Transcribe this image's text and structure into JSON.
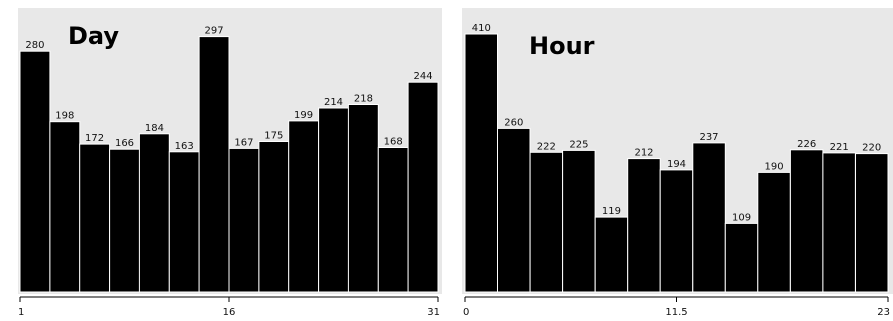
{
  "chart_data": [
    {
      "type": "bar",
      "title": "Day",
      "xlabel": "",
      "ylabel": "",
      "values": [
        280,
        198,
        172,
        166,
        184,
        163,
        297,
        167,
        175,
        199,
        214,
        218,
        168,
        244
      ],
      "xticks": [
        "1",
        "16",
        "31"
      ],
      "ylim": [
        0,
        300
      ],
      "grid": false,
      "colors": {
        "bar": "#000000",
        "background": "#e8e8e8"
      }
    },
    {
      "type": "bar",
      "title": "Hour",
      "xlabel": "",
      "ylabel": "",
      "values": [
        410,
        260,
        222,
        225,
        119,
        212,
        194,
        237,
        109,
        190,
        226,
        221,
        220
      ],
      "xticks": [
        "0",
        "11.5",
        "23"
      ],
      "ylim": [
        0,
        410
      ],
      "grid": false,
      "colors": {
        "bar": "#000000",
        "background": "#e8e8e8"
      }
    }
  ]
}
